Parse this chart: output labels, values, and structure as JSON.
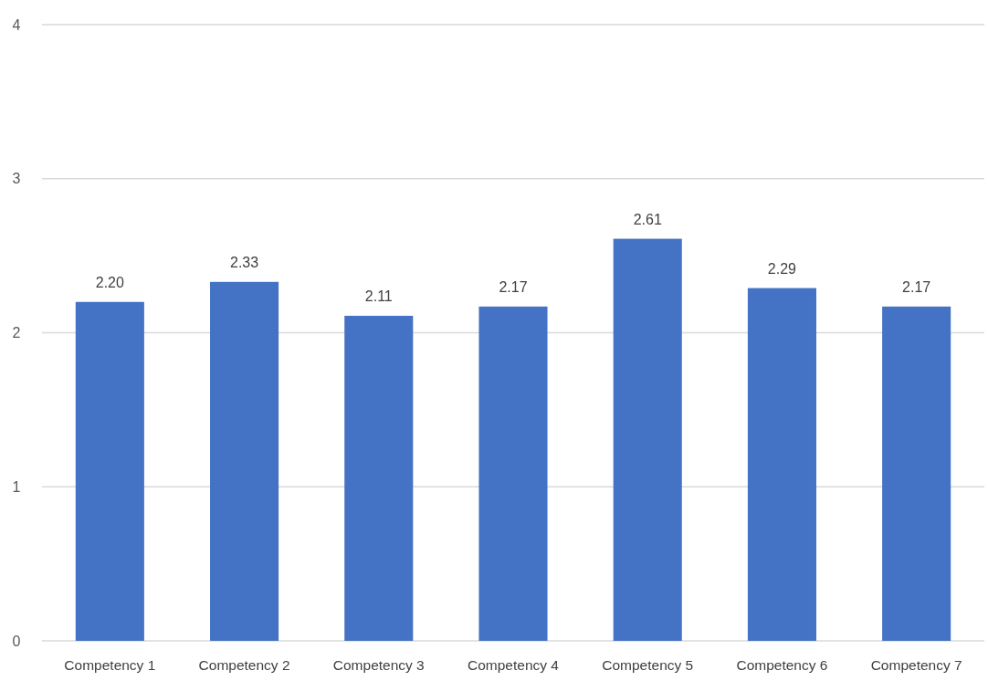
{
  "chart_data": {
    "type": "bar",
    "categories": [
      "Competency 1",
      "Competency 2",
      "Competency 3",
      "Competency 4",
      "Competency 5",
      "Competency 6",
      "Competency 7"
    ],
    "values": [
      2.2,
      2.33,
      2.11,
      2.17,
      2.61,
      2.29,
      2.17
    ],
    "value_labels": [
      "2.20",
      "2.33",
      "2.11",
      "2.17",
      "2.61",
      "2.29",
      "2.17"
    ],
    "color": "#4472c4",
    "ylim": [
      0,
      4
    ],
    "yticks": [
      0,
      1,
      2,
      3,
      4
    ],
    "grid": "y"
  }
}
